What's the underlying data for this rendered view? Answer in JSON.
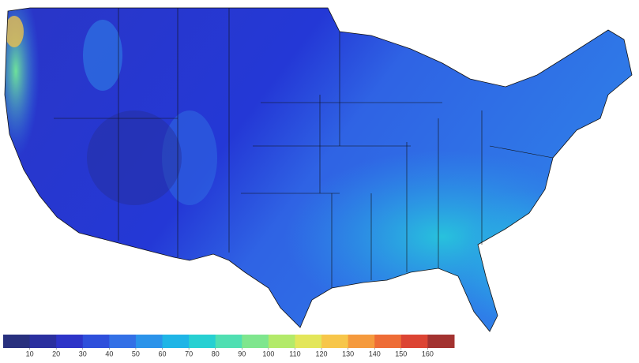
{
  "legend": {
    "ticks": [
      10,
      20,
      30,
      40,
      50,
      60,
      70,
      80,
      90,
      100,
      110,
      120,
      130,
      140,
      150,
      160
    ],
    "colors": [
      "#28307e",
      "#2a2f9f",
      "#2d34c8",
      "#2e4fdb",
      "#3370e6",
      "#2b93ea",
      "#1fb5e6",
      "#27d0d2",
      "#50dfb2",
      "#7fe68e",
      "#b3ea6a",
      "#e3e65a",
      "#f7c64a",
      "#f59a3d",
      "#ee6c36",
      "#dc4433",
      "#a33230"
    ]
  }
}
